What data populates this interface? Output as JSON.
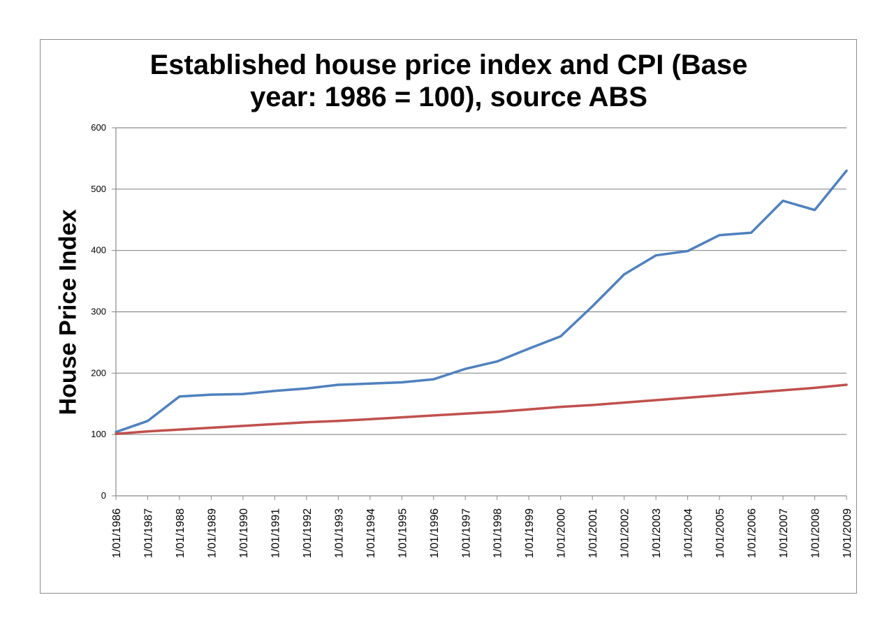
{
  "chart_data": {
    "type": "line",
    "title_line1": "Established house price index and CPI (Base",
    "title_line2": "year: 1986 = 100), source ABS",
    "xlabel": "",
    "ylabel": "House Price Index",
    "ylim": [
      0,
      600
    ],
    "yticks": [
      0,
      100,
      200,
      300,
      400,
      500,
      600
    ],
    "grid": true,
    "legend": "none",
    "categories": [
      "1/01/1986",
      "1/01/1987",
      "1/01/1988",
      "1/01/1989",
      "1/01/1990",
      "1/01/1991",
      "1/01/1992",
      "1/01/1993",
      "1/01/1994",
      "1/01/1995",
      "1/01/1996",
      "1/01/1997",
      "1/01/1998",
      "1/01/1999",
      "1/01/2000",
      "1/01/2001",
      "1/01/2002",
      "1/01/2003",
      "1/01/2004",
      "1/01/2005",
      "1/01/2006",
      "1/01/2007",
      "1/01/2008",
      "1/01/2009"
    ],
    "series": [
      {
        "color": "#4f81bd",
        "values": [
          104,
          122,
          162,
          165,
          166,
          171,
          175,
          181,
          183,
          185,
          190,
          207,
          219,
          240,
          260,
          309,
          361,
          392,
          399,
          425,
          429,
          481,
          466,
          530
        ]
      },
      {
        "color": "#c0504d",
        "values": [
          101,
          105,
          108,
          111,
          114,
          117,
          120,
          122,
          125,
          128,
          131,
          134,
          137,
          141,
          145,
          148,
          152,
          156,
          160,
          164,
          168,
          172,
          176,
          181
        ]
      }
    ]
  }
}
